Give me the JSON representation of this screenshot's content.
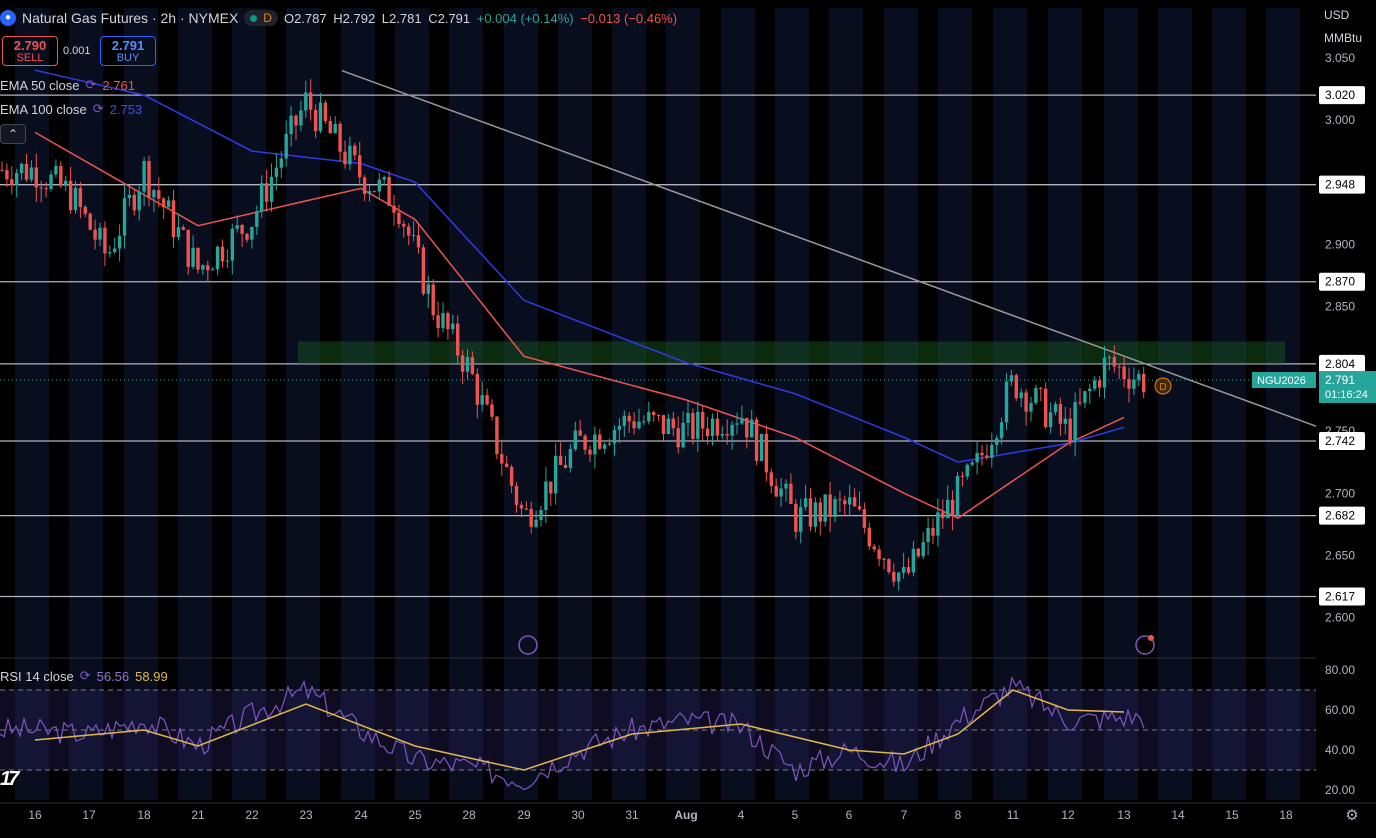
{
  "header": {
    "symbol_icon": "flame-icon",
    "title": "Natural Gas Futures · 2h · NYMEX",
    "status_dot_color": "#089981",
    "badge": "D",
    "badge_color": "#f57c00",
    "ohlc": {
      "open": "O2.787",
      "high": "H2.792",
      "low": "L2.781",
      "close": "C2.791",
      "change": "+0.004 (+0.14%)",
      "change2": "−0.013 (−0.46%)"
    }
  },
  "trade": {
    "sell_price": "2.790",
    "sell_label": "SELL",
    "spread": "0.001",
    "buy_price": "2.791",
    "buy_label": "BUY"
  },
  "indicators": {
    "ema50_label": "EMA 50 close",
    "ema50_value": "2.761",
    "ema50_color": "#ef5350",
    "ema100_label": "EMA 100 close",
    "ema100_value": "2.753",
    "ema100_color": "#2f3ae8",
    "rsi_label": "RSI 14 close",
    "rsi_value": "56.56",
    "rsi_ma_value": "58.99",
    "rsi_color": "#7e57c2",
    "rsi_ma_color": "#e0b84a"
  },
  "toolbar": {
    "currency": "USD",
    "unit": "MMBtu"
  },
  "price_scale": {
    "ticks": [
      "3.050",
      "3.000",
      "2.900",
      "2.850",
      "2.750",
      "2.700",
      "2.650",
      "2.600"
    ],
    "level_labels": [
      "3.020",
      "2.948",
      "2.870",
      "2.804",
      "2.742",
      "2.682",
      "2.617"
    ],
    "current_price": "2.791",
    "countdown": "01:16:24",
    "symbol_tag": "NGU2026"
  },
  "rsi_scale": {
    "ticks": [
      "80.00",
      "60.00",
      "40.00",
      "20.00"
    ]
  },
  "time_axis": {
    "labels": [
      "16",
      "17",
      "18",
      "21",
      "22",
      "23",
      "24",
      "25",
      "28",
      "29",
      "30",
      "31",
      "Aug",
      "4",
      "5",
      "6",
      "7",
      "8",
      "11",
      "12",
      "13",
      "14",
      "15",
      "18"
    ]
  },
  "chart_data": {
    "type": "candlestick",
    "instrument": "Natural Gas Futures",
    "interval": "2h",
    "exchange": "NYMEX",
    "horizontal_levels": [
      3.02,
      2.948,
      2.87,
      2.804,
      2.742,
      2.682,
      2.617
    ],
    "resistance_zone": [
      2.804,
      2.822
    ],
    "trendline": [
      {
        "x": "Jul 23",
        "y": 3.03
      },
      {
        "x": "Aug 18",
        "y": 2.77
      }
    ],
    "ylim": [
      2.57,
      3.09
    ],
    "grid": false,
    "price_path": [
      {
        "x": "Jul 16",
        "y": 2.96
      },
      {
        "x": "Jul 17",
        "y": 2.94
      },
      {
        "x": "Jul 17",
        "y": 2.89
      },
      {
        "x": "Jul 18",
        "y": 2.96
      },
      {
        "x": "Jul 21",
        "y": 2.88
      },
      {
        "x": "Jul 22",
        "y": 2.92
      },
      {
        "x": "Jul 23",
        "y": 3.015
      },
      {
        "x": "Jul 24",
        "y": 2.955
      },
      {
        "x": "Jul 25",
        "y": 2.935
      },
      {
        "x": "Jul 25",
        "y": 2.85
      },
      {
        "x": "Jul 28",
        "y": 2.8
      },
      {
        "x": "Jul 29",
        "y": 2.68
      },
      {
        "x": "Jul 30",
        "y": 2.74
      },
      {
        "x": "Jul 31",
        "y": 2.76
      },
      {
        "x": "Aug 1",
        "y": 2.75
      },
      {
        "x": "Aug 4",
        "y": 2.765
      },
      {
        "x": "Aug 5",
        "y": 2.68
      },
      {
        "x": "Aug 6",
        "y": 2.69
      },
      {
        "x": "Aug 7",
        "y": 2.63
      },
      {
        "x": "Aug 8",
        "y": 2.68
      },
      {
        "x": "Aug 8",
        "y": 2.72
      },
      {
        "x": "Aug 11",
        "y": 2.79
      },
      {
        "x": "Aug 12",
        "y": 2.75
      },
      {
        "x": "Aug 13",
        "y": 2.805
      },
      {
        "x": "Aug 13",
        "y": 2.791
      }
    ],
    "ema50_path": [
      {
        "x": "Jul 16",
        "y": 2.99
      },
      {
        "x": "Jul 21",
        "y": 2.915
      },
      {
        "x": "Jul 23",
        "y": 2.935
      },
      {
        "x": "Jul 24",
        "y": 2.945
      },
      {
        "x": "Jul 25",
        "y": 2.92
      },
      {
        "x": "Jul 29",
        "y": 2.81
      },
      {
        "x": "Aug 1",
        "y": 2.775
      },
      {
        "x": "Aug 5",
        "y": 2.745
      },
      {
        "x": "Aug 7",
        "y": 2.7
      },
      {
        "x": "Aug 8",
        "y": 2.68
      },
      {
        "x": "Aug 12",
        "y": 2.74
      },
      {
        "x": "Aug 13",
        "y": 2.761
      }
    ],
    "ema100_path": [
      {
        "x": "Jul 16",
        "y": 3.04
      },
      {
        "x": "Jul 18",
        "y": 3.02
      },
      {
        "x": "Jul 22",
        "y": 2.975
      },
      {
        "x": "Jul 24",
        "y": 2.965
      },
      {
        "x": "Jul 25",
        "y": 2.95
      },
      {
        "x": "Jul 29",
        "y": 2.855
      },
      {
        "x": "Aug 1",
        "y": 2.805
      },
      {
        "x": "Aug 5",
        "y": 2.78
      },
      {
        "x": "Aug 7",
        "y": 2.745
      },
      {
        "x": "Aug 8",
        "y": 2.725
      },
      {
        "x": "Aug 12",
        "y": 2.74
      },
      {
        "x": "Aug 13",
        "y": 2.753
      }
    ],
    "rsi": {
      "ylim": [
        15,
        85
      ],
      "bands": [
        30,
        50,
        70
      ],
      "path": [
        {
          "x": "Jul 16",
          "y": 50
        },
        {
          "x": "Jul 17",
          "y": 48
        },
        {
          "x": "Jul 18",
          "y": 55
        },
        {
          "x": "Jul 21",
          "y": 42
        },
        {
          "x": "Jul 22",
          "y": 58
        },
        {
          "x": "Jul 23",
          "y": 70
        },
        {
          "x": "Jul 24",
          "y": 50
        },
        {
          "x": "Jul 25",
          "y": 35
        },
        {
          "x": "Jul 28",
          "y": 32
        },
        {
          "x": "Jul 29",
          "y": 25
        },
        {
          "x": "Jul 30",
          "y": 40
        },
        {
          "x": "Jul 31",
          "y": 50
        },
        {
          "x": "Aug 1",
          "y": 55
        },
        {
          "x": "Aug 4",
          "y": 52
        },
        {
          "x": "Aug 5",
          "y": 30
        },
        {
          "x": "Aug 6",
          "y": 40
        },
        {
          "x": "Aug 7",
          "y": 32
        },
        {
          "x": "Aug 8",
          "y": 55
        },
        {
          "x": "Aug 11",
          "y": 72
        },
        {
          "x": "Aug 12",
          "y": 55
        },
        {
          "x": "Aug 13",
          "y": 56.56
        }
      ],
      "ma_path": [
        {
          "x": "Jul 16",
          "y": 45
        },
        {
          "x": "Jul 18",
          "y": 50
        },
        {
          "x": "Jul 21",
          "y": 42
        },
        {
          "x": "Jul 23",
          "y": 63
        },
        {
          "x": "Jul 25",
          "y": 42
        },
        {
          "x": "Jul 29",
          "y": 30
        },
        {
          "x": "Jul 31",
          "y": 48
        },
        {
          "x": "Aug 4",
          "y": 53
        },
        {
          "x": "Aug 6",
          "y": 40
        },
        {
          "x": "Aug 7",
          "y": 38
        },
        {
          "x": "Aug 8",
          "y": 48
        },
        {
          "x": "Aug 11",
          "y": 70
        },
        {
          "x": "Aug 12",
          "y": 60
        },
        {
          "x": "Aug 13",
          "y": 58.99
        }
      ]
    }
  }
}
